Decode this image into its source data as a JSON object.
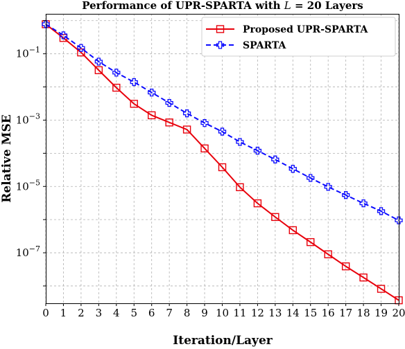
{
  "chart_data": {
    "type": "line",
    "title": "Performance of UPR-SPARTA with L = 20 Layers",
    "title_parts": {
      "before": "Performance of UPR-SPARTA with ",
      "var": "L",
      "after": " = 20 Layers"
    },
    "xlabel": "Iteration/Layer",
    "ylabel": "Relative MSE",
    "xlim": [
      0,
      20
    ],
    "ylim": [
      3e-09,
      1.6
    ],
    "yscale": "log",
    "grid": true,
    "legend_position": "top-right",
    "x": [
      0,
      1,
      2,
      3,
      4,
      5,
      6,
      7,
      8,
      9,
      10,
      11,
      12,
      13,
      14,
      15,
      16,
      17,
      18,
      19,
      20
    ],
    "x_ticks": [
      "0",
      "1",
      "2",
      "3",
      "4",
      "5",
      "6",
      "7",
      "8",
      "9",
      "10",
      "11",
      "12",
      "13",
      "14",
      "15",
      "16",
      "17",
      "18",
      "19",
      "20"
    ],
    "y_ticks": [
      {
        "value": 0.1,
        "base": "10",
        "exp": "−1"
      },
      {
        "value": 0.001,
        "base": "10",
        "exp": "−3"
      },
      {
        "value": 1e-05,
        "base": "10",
        "exp": "−5"
      },
      {
        "value": 1e-07,
        "base": "10",
        "exp": "−7"
      }
    ],
    "series": [
      {
        "name": "Proposed UPR-SPARTA",
        "color": "#e8000b",
        "line_style": "solid",
        "marker": "square",
        "values": [
          0.78,
          0.3,
          0.11,
          0.032,
          0.0095,
          0.0031,
          0.0014,
          0.00085,
          0.00052,
          0.00014,
          3.8e-05,
          9.5e-06,
          3.1e-06,
          1.2e-06,
          4.8e-07,
          2.1e-07,
          9e-08,
          3.9e-08,
          1.8e-08,
          8.2e-09,
          3.7e-09
        ]
      },
      {
        "name": "SPARTA",
        "color": "#0b0bff",
        "line_style": "dashed",
        "marker": "plus",
        "values": [
          0.78,
          0.36,
          0.15,
          0.058,
          0.027,
          0.014,
          0.0068,
          0.0033,
          0.0016,
          0.00082,
          0.00045,
          0.00022,
          0.00012,
          6.5e-05,
          3.4e-05,
          1.8e-05,
          9.7e-06,
          5.5e-06,
          3.1e-06,
          1.8e-06,
          9.5e-07
        ]
      }
    ]
  }
}
